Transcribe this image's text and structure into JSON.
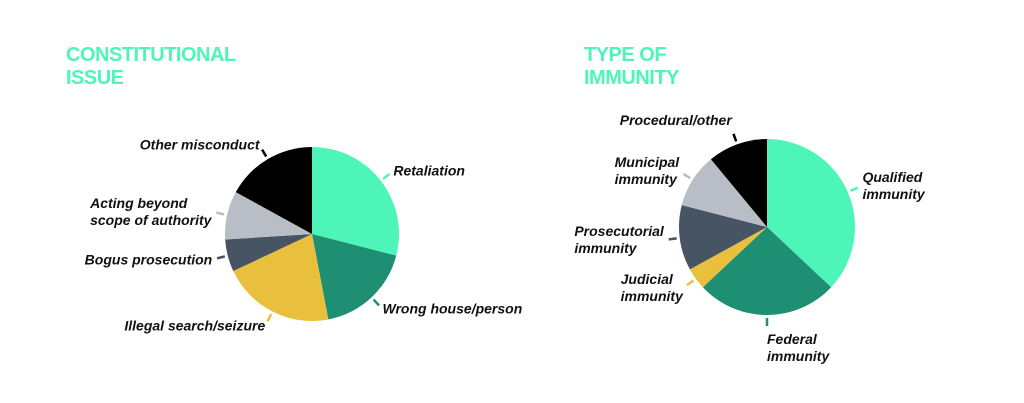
{
  "chart_data": [
    {
      "type": "pie",
      "title": "CONSTITUTIONAL\nISSUE",
      "categories": [
        "Retaliation",
        "Wrong house/person",
        "Illegal search/seizure",
        "Bogus prosecution",
        "Acting beyond\nscope of authority",
        "Other misconduct"
      ],
      "values": [
        29,
        18,
        21,
        6,
        9,
        17
      ],
      "colors": [
        "#4ef5b8",
        "#1f8f74",
        "#e9bf3e",
        "#475464",
        "#b9bec6",
        "#000000"
      ]
    },
    {
      "type": "pie",
      "title": "TYPE OF\nIMMUNITY",
      "categories": [
        "Qualified\nimmunity",
        "Federal\nimmunity",
        "Judicial\nimmunity",
        "Prosecutorial\nimmunity",
        "Municipal\nimmunity",
        "Procedural/other"
      ],
      "values": [
        37,
        26,
        4,
        12,
        10,
        11
      ],
      "colors": [
        "#4ef5b8",
        "#1f8f74",
        "#e9bf3e",
        "#475464",
        "#b9bec6",
        "#000000"
      ]
    }
  ]
}
